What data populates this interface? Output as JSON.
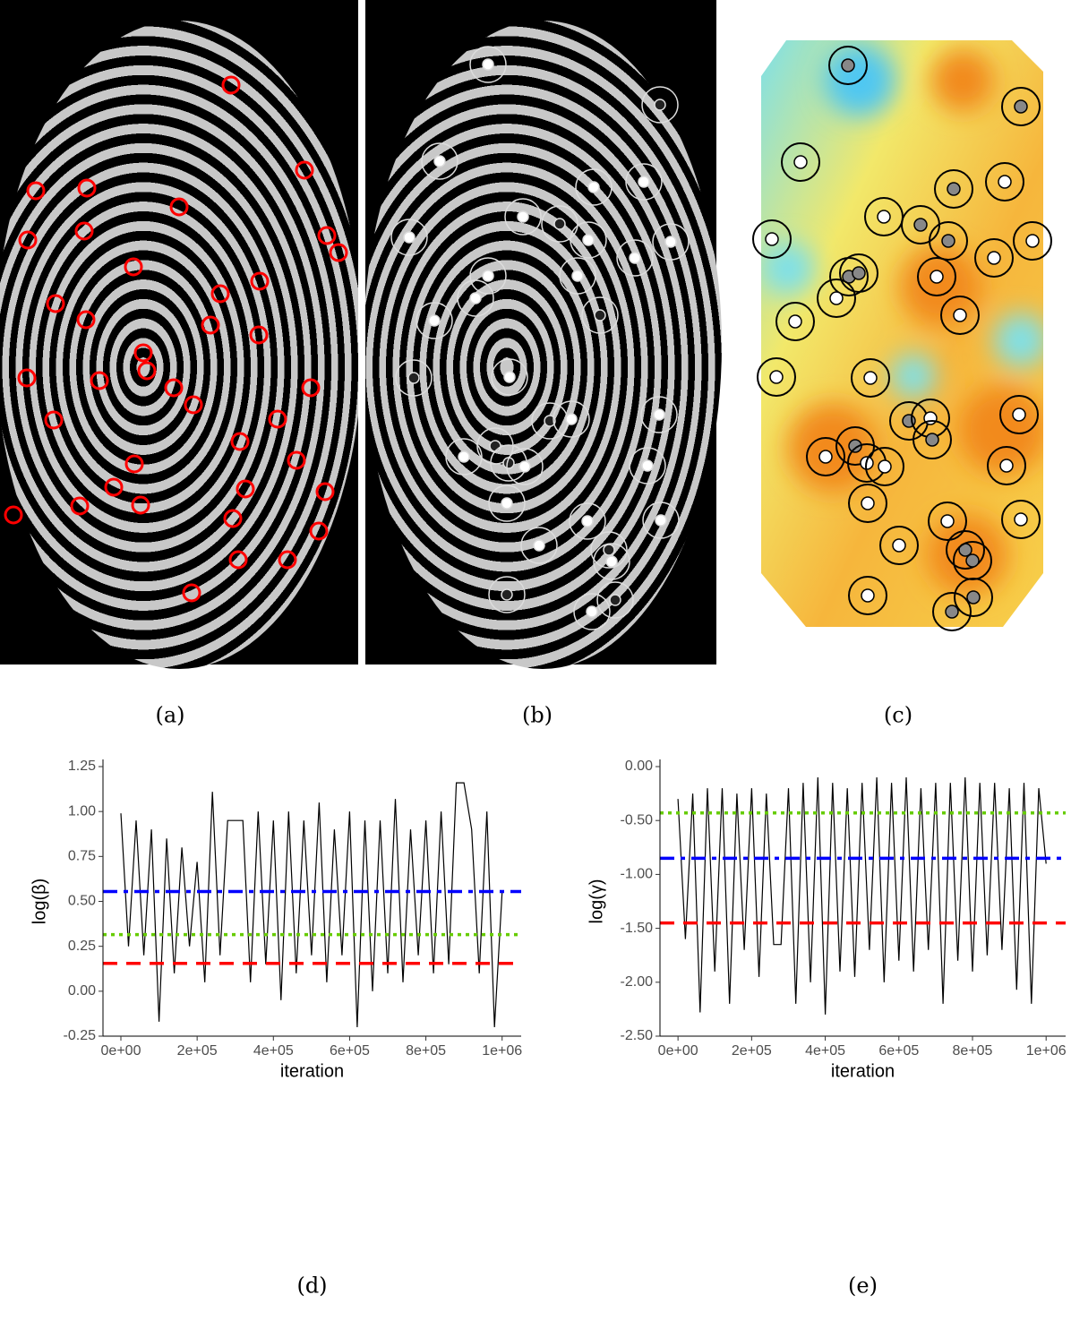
{
  "captions": [
    "(a)",
    "(b)",
    "(c)"
  ],
  "chart_data": [
    {
      "type": "line",
      "caption": "(d)",
      "xlabel": "iteration",
      "ylabel": "log(β)",
      "xlim": [
        -47000,
        1050000
      ],
      "ylim": [
        -0.25,
        1.25
      ],
      "xticks": [
        {
          "value": 0,
          "label": "0e+00"
        },
        {
          "value": 200000,
          "label": "2e+05"
        },
        {
          "value": 400000,
          "label": "4e+05"
        },
        {
          "value": 600000,
          "label": "6e+05"
        },
        {
          "value": 800000,
          "label": "8e+05"
        },
        {
          "value": 1000000,
          "label": "1e+06"
        }
      ],
      "yticks": [
        -0.25,
        {
          "value": 0,
          "label": "0.00"
        },
        0.25,
        {
          "value": 0.5,
          "label": "0.50"
        },
        0.75,
        {
          "value": 1,
          "label": "1.00"
        },
        1.25
      ],
      "x": [
        0,
        20000,
        40000,
        60000,
        80000,
        100000,
        120000,
        140000,
        160000,
        180000,
        200000,
        220000,
        240000,
        260000,
        280000,
        300000,
        320000,
        340000,
        360000,
        380000,
        400000,
        420000,
        440000,
        460000,
        480000,
        500000,
        520000,
        540000,
        560000,
        580000,
        600000,
        620000,
        640000,
        660000,
        680000,
        700000,
        720000,
        740000,
        760000,
        780000,
        800000,
        820000,
        840000,
        860000,
        880000,
        900000,
        920000,
        940000,
        960000,
        980000,
        1000000
      ],
      "values": [
        0.99,
        0.25,
        0.95,
        0.2,
        0.9,
        -0.17,
        0.85,
        0.1,
        0.8,
        0.25,
        0.72,
        0.05,
        1.11,
        0.2,
        0.95,
        0.95,
        0.95,
        0.05,
        1.0,
        0.15,
        0.95,
        -0.05,
        1.0,
        0.1,
        0.95,
        0.2,
        1.05,
        0.05,
        0.9,
        0.2,
        1.0,
        -0.2,
        0.95,
        0.0,
        0.95,
        0.1,
        1.07,
        0.05,
        0.9,
        0.2,
        0.95,
        0.1,
        1.0,
        0.15,
        1.16,
        1.16,
        0.9,
        0.1,
        1.0,
        -0.2,
        0.55
      ],
      "color": "#000000",
      "hlines": [
        {
          "value": 0.555,
          "color": "#0000ff",
          "style": "dashdot"
        },
        {
          "value": 0.315,
          "color": "#66cc00",
          "style": "dotted"
        },
        {
          "value": 0.155,
          "color": "#ff0000",
          "style": "dashed"
        }
      ]
    },
    {
      "type": "line",
      "caption": "(e)",
      "xlabel": "iteration",
      "ylabel": "log(γ)",
      "xlim": [
        -49000,
        1053000
      ],
      "ylim": [
        -2.5,
        0
      ],
      "xticks": [
        {
          "value": 0,
          "label": "0e+00"
        },
        {
          "value": 200000,
          "label": "2e+05"
        },
        {
          "value": 400000,
          "label": "4e+05"
        },
        {
          "value": 600000,
          "label": "6e+05"
        },
        {
          "value": 800000,
          "label": "8e+05"
        },
        {
          "value": 1000000,
          "label": "1e+06"
        }
      ],
      "yticks": [
        {
          "value": -2.5,
          "label": "-2.50"
        },
        {
          "value": -2,
          "label": "-2.00"
        },
        {
          "value": -1.5,
          "label": "-1.50"
        },
        {
          "value": -1,
          "label": "-1.00"
        },
        {
          "value": -0.5,
          "label": "-0.50"
        },
        {
          "value": 0,
          "label": "0.00"
        }
      ],
      "x": [
        0,
        20000,
        40000,
        60000,
        80000,
        100000,
        120000,
        140000,
        160000,
        180000,
        200000,
        220000,
        240000,
        260000,
        280000,
        300000,
        320000,
        340000,
        360000,
        380000,
        400000,
        420000,
        440000,
        460000,
        480000,
        500000,
        520000,
        540000,
        560000,
        580000,
        600000,
        620000,
        640000,
        660000,
        680000,
        700000,
        720000,
        740000,
        760000,
        780000,
        800000,
        820000,
        840000,
        860000,
        880000,
        900000,
        920000,
        940000,
        960000,
        980000,
        1000000
      ],
      "values": [
        -0.3,
        -1.6,
        -0.25,
        -2.28,
        -0.2,
        -1.9,
        -0.2,
        -2.2,
        -0.25,
        -1.7,
        -0.2,
        -1.95,
        -0.25,
        -1.65,
        -1.65,
        -0.2,
        -2.2,
        -0.15,
        -2.0,
        -0.1,
        -2.3,
        -0.15,
        -1.9,
        -0.2,
        -1.95,
        -0.15,
        -1.7,
        -0.1,
        -2.0,
        -0.15,
        -1.8,
        -0.1,
        -1.9,
        -0.2,
        -1.7,
        -0.15,
        -2.2,
        -0.15,
        -1.8,
        -0.1,
        -1.9,
        -0.15,
        -1.75,
        -0.15,
        -1.7,
        -0.2,
        -2.07,
        -0.15,
        -2.2,
        -0.2,
        -0.9
      ],
      "color": "#000000",
      "hlines": [
        {
          "value": -0.43,
          "color": "#66cc00",
          "style": "dotted"
        },
        {
          "value": -0.85,
          "color": "#0000ff",
          "style": "dashdot"
        },
        {
          "value": -1.45,
          "color": "#ff0000",
          "style": "dashed"
        }
      ]
    }
  ]
}
